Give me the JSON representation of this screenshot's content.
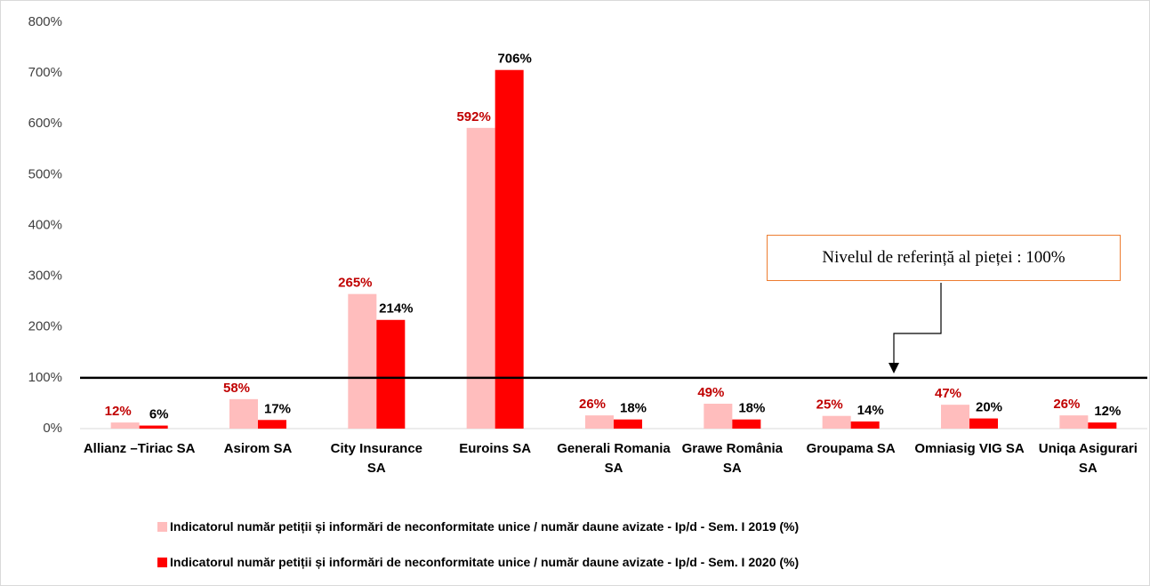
{
  "chart_data": {
    "type": "bar",
    "categories": [
      "Allianz –Tiriac SA",
      "Asirom SA",
      "City Insurance SA",
      "Euroins SA",
      "Generali Romania SA",
      "Grawe România SA",
      "Groupama SA",
      "Omniasig VIG SA",
      "Uniqa Asigurari SA"
    ],
    "series": [
      {
        "name": "Indicatorul număr petiții și informări de neconformitate unice / număr daune avizate - Ip/d - Sem. I 2019 (%)",
        "color": "#ffbdbd",
        "label_color": "#c00000",
        "values": [
          12,
          58,
          265,
          592,
          26,
          49,
          25,
          47,
          26
        ],
        "value_labels": [
          "12%",
          "58%",
          "265%",
          "592%",
          "26%",
          "49%",
          "25%",
          "47%",
          "26%"
        ]
      },
      {
        "name": "Indicatorul număr petiții și informări de neconformitate unice / număr daune avizate - Ip/d - Sem. I 2020 (%)",
        "color": "#ff0000",
        "label_color": "#000000",
        "values": [
          6,
          17,
          214,
          706,
          18,
          18,
          14,
          20,
          12
        ],
        "value_labels": [
          "6%",
          "17%",
          "214%",
          "706%",
          "18%",
          "18%",
          "14%",
          "20%",
          "12%"
        ]
      }
    ],
    "ylim": [
      0,
      800
    ],
    "yticks": [
      {
        "value": 0,
        "label": "0%"
      },
      {
        "value": 100,
        "label": "100%"
      },
      {
        "value": 200,
        "label": "200%"
      },
      {
        "value": 300,
        "label": "300%"
      },
      {
        "value": 400,
        "label": "400%"
      },
      {
        "value": 500,
        "label": "500%"
      },
      {
        "value": 600,
        "label": "600%"
      },
      {
        "value": 700,
        "label": "700%"
      },
      {
        "value": 800,
        "label": "800%"
      }
    ],
    "reference_value": 100,
    "annotation": "Nivelul de referință al pieței : 100%",
    "grid": false,
    "legend": "bottom"
  }
}
